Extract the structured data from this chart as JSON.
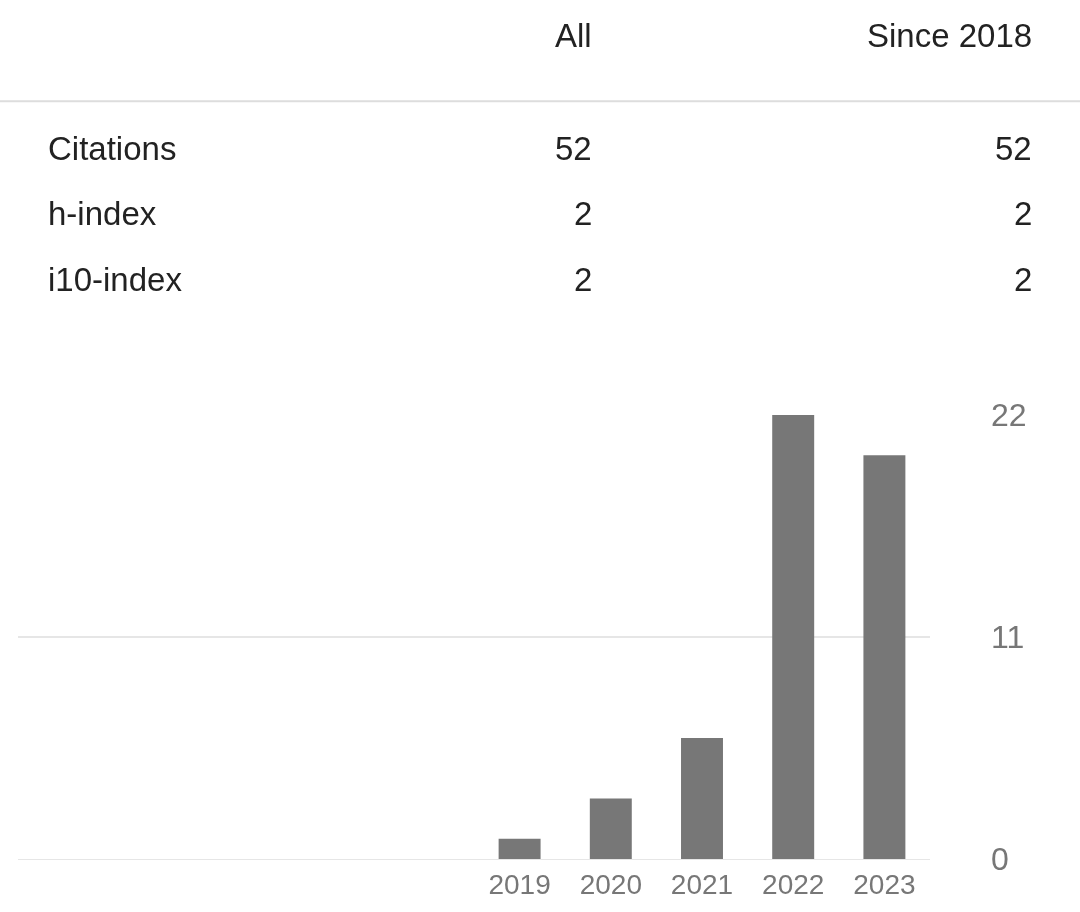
{
  "chart_data": {
    "type": "bar",
    "categories": [
      null,
      null,
      null,
      null,
      null,
      "2019",
      "2020",
      "2021",
      "2022",
      "2023"
    ],
    "values": [
      null,
      null,
      null,
      null,
      null,
      1,
      3,
      6,
      22,
      20
    ],
    "color": "#777777",
    "ylim": [
      0,
      22
    ],
    "yticks": [
      0,
      11,
      22
    ],
    "grid": "y",
    "legend": false,
    "annotations": [
      "All",
      "Since 2018",
      "Citations",
      "52",
      "52",
      "h-index",
      "2",
      "2",
      "i10-index",
      "2",
      "2"
    ]
  }
}
